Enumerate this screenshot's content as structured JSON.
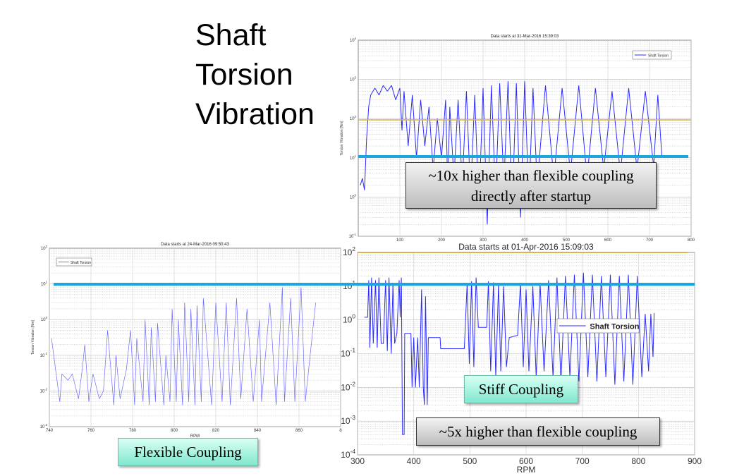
{
  "slide": {
    "title_lines": [
      "Shaft",
      "Torsion",
      "Vibration"
    ]
  },
  "annotations": {
    "top_note_line1": "~10x higher than flexible coupling",
    "top_note_line2": "directly after startup",
    "stiff_label": "Stiff Coupling",
    "stiff_note": "~5x higher than flexible coupling",
    "flexible_label": "Flexible Coupling",
    "reference_line_color": "#1aa7e0",
    "limit_line_color": "#d9b44a"
  },
  "chart_data": [
    {
      "id": "top",
      "type": "line",
      "title": "Data starts at 31-Mar-2016 15:39:03",
      "xlabel": "",
      "ylabel": "Torsion Vibration [Nm]",
      "yscale": "log",
      "xlim": [
        0,
        800
      ],
      "ylim": [
        0.1,
        10000
      ],
      "xticks": [
        "100",
        "200",
        "300",
        "400",
        "500",
        "600",
        "700",
        "800"
      ],
      "yticks": [
        "10^4",
        "10^3",
        "10^2",
        "10^1",
        "10^0",
        "10^-1"
      ],
      "grid": true,
      "legend": "top-right",
      "series": [
        {
          "name": "Shaft Torsion",
          "color": "#2b2bff",
          "points": [
            [
              5,
              2
            ],
            [
              10,
              3
            ],
            [
              15,
              1.5
            ],
            [
              20,
              30
            ],
            [
              25,
              200
            ],
            [
              30,
              400
            ],
            [
              40,
              600
            ],
            [
              50,
              400
            ],
            [
              60,
              700
            ],
            [
              70,
              500
            ],
            [
              80,
              700
            ],
            [
              90,
              300
            ],
            [
              100,
              600
            ],
            [
              105,
              50
            ],
            [
              110,
              500
            ],
            [
              120,
              20
            ],
            [
              130,
              400
            ],
            [
              140,
              10
            ],
            [
              150,
              300
            ],
            [
              160,
              20
            ],
            [
              170,
              200
            ],
            [
              180,
              5
            ],
            [
              190,
              100
            ],
            [
              200,
              10
            ],
            [
              210,
              300
            ],
            [
              215,
              2
            ],
            [
              220,
              200
            ],
            [
              230,
              3
            ],
            [
              240,
              300
            ],
            [
              250,
              2
            ],
            [
              260,
              500
            ],
            [
              270,
              1
            ],
            [
              280,
              400
            ],
            [
              290,
              0.5
            ],
            [
              300,
              600
            ],
            [
              310,
              0.2
            ],
            [
              320,
              700
            ],
            [
              330,
              1
            ],
            [
              340,
              800
            ],
            [
              350,
              2
            ],
            [
              360,
              900
            ],
            [
              370,
              0.5
            ],
            [
              380,
              800
            ],
            [
              390,
              0.3
            ],
            [
              400,
              900
            ],
            [
              410,
              0.8
            ],
            [
              420,
              600
            ],
            [
              430,
              2
            ],
            [
              450,
              700
            ],
            [
              470,
              3
            ],
            [
              490,
              600
            ],
            [
              510,
              4
            ],
            [
              530,
              700
            ],
            [
              550,
              3
            ],
            [
              570,
              600
            ],
            [
              590,
              5
            ],
            [
              610,
              500
            ],
            [
              630,
              4
            ],
            [
              650,
              600
            ],
            [
              670,
              5
            ],
            [
              690,
              500
            ],
            [
              710,
              6
            ],
            [
              720,
              400
            ],
            [
              730,
              10
            ]
          ]
        }
      ]
    },
    {
      "id": "flexible",
      "type": "line",
      "title": "Data starts at 24-Mar-2016 09:50:43",
      "xlabel": "RPM",
      "ylabel": "Torsion Vibration [Nm]",
      "yscale": "log",
      "xlim": [
        740,
        880
      ],
      "ylim": [
        0.001,
        100
      ],
      "xticks": [
        "740",
        "760",
        "780",
        "800",
        "820",
        "840",
        "860",
        "8"
      ],
      "yticks": [
        "10^2",
        "10^1",
        "10^0",
        "10^-1",
        "10^-2",
        "10^-3"
      ],
      "grid": true,
      "legend": "top-left",
      "series": [
        {
          "name": "Shaft Torsion",
          "color": "#6b6bff",
          "points": [
            [
              741,
              0.3
            ],
            [
              745,
              0.005
            ],
            [
              746,
              0.03
            ],
            [
              749,
              0.02
            ],
            [
              751,
              0.03
            ],
            [
              754,
              0.006
            ],
            [
              756,
              0.05
            ],
            [
              757,
              0.2
            ],
            [
              759,
              0.005
            ],
            [
              761,
              0.03
            ],
            [
              764,
              0.006
            ],
            [
              766,
              0.01
            ],
            [
              768,
              0.5
            ],
            [
              771,
              0.004
            ],
            [
              772,
              0.1
            ],
            [
              774,
              0.006
            ],
            [
              777,
              0.04
            ],
            [
              779,
              0.5
            ],
            [
              781,
              0.004
            ],
            [
              782,
              0.3
            ],
            [
              785,
              0.005
            ],
            [
              786,
              1
            ],
            [
              788,
              0.004
            ],
            [
              789,
              0.6
            ],
            [
              791,
              0.005
            ],
            [
              792,
              0.8
            ],
            [
              795,
              0.004
            ],
            [
              796,
              0.1
            ],
            [
              798,
              0.005
            ],
            [
              799,
              2
            ],
            [
              801,
              0.005
            ],
            [
              802,
              1
            ],
            [
              804,
              0.004
            ],
            [
              805,
              3
            ],
            [
              807,
              0.005
            ],
            [
              808,
              2
            ],
            [
              810,
              0.004
            ],
            [
              811,
              2.5
            ],
            [
              813,
              0.005
            ],
            [
              814,
              4
            ],
            [
              818,
              0.004
            ],
            [
              820,
              3
            ],
            [
              823,
              0.005
            ],
            [
              825,
              3
            ],
            [
              827,
              0.004
            ],
            [
              830,
              4
            ],
            [
              832,
              0.006
            ],
            [
              835,
              2
            ],
            [
              838,
              0.005
            ],
            [
              841,
              1
            ],
            [
              842,
              0.005
            ],
            [
              846,
              3
            ],
            [
              849,
              0.004
            ],
            [
              852,
              8
            ],
            [
              853,
              0.005
            ],
            [
              856,
              4
            ],
            [
              858,
              0.005
            ],
            [
              861,
              8
            ],
            [
              863,
              0.005
            ],
            [
              868,
              3
            ]
          ]
        }
      ]
    },
    {
      "id": "stiff",
      "type": "line",
      "title": "Data starts at 01-Apr-2016 15:09:03",
      "xlabel": "RPM",
      "ylabel": "",
      "yscale": "log",
      "xlim": [
        300,
        900
      ],
      "ylim": [
        0.0001,
        100
      ],
      "xticks": [
        "300",
        "400",
        "500",
        "600",
        "700",
        "800",
        "900"
      ],
      "yticks": [
        "10^2",
        "10^1",
        "10^0",
        "10^-1",
        "10^-2",
        "10^-3",
        "10^-4"
      ],
      "grid": true,
      "legend": "right",
      "series": [
        {
          "name": "Shaft Torsion",
          "color": "#2b2bff",
          "points": [
            [
              312,
              1.2
            ],
            [
              318,
              1.2
            ],
            [
              320,
              15
            ],
            [
              322,
              0.15
            ],
            [
              325,
              18
            ],
            [
              328,
              0.2
            ],
            [
              332,
              15
            ],
            [
              335,
              0.15
            ],
            [
              338,
              18
            ],
            [
              342,
              0.2
            ],
            [
              346,
              0.2
            ],
            [
              350,
              15
            ],
            [
              353,
              0.12
            ],
            [
              356,
              18
            ],
            [
              360,
              0.1
            ],
            [
              363,
              12
            ],
            [
              366,
              0.2
            ],
            [
              370,
              0.4
            ],
            [
              374,
              15
            ],
            [
              376,
              1.2
            ],
            [
              378,
              18
            ],
            [
              380,
              0.0004
            ],
            [
              383,
              0.0004
            ],
            [
              384,
              0.4
            ],
            [
              395,
              0.4
            ],
            [
              397,
              0.01
            ],
            [
              400,
              0.3
            ],
            [
              403,
              0.01
            ],
            [
              407,
              0.3
            ],
            [
              410,
              0.01
            ],
            [
              414,
              8
            ],
            [
              417,
              0.01
            ],
            [
              419,
              0.003
            ],
            [
              421,
              5
            ],
            [
              424,
              0.003
            ],
            [
              426,
              0.3
            ],
            [
              447,
              0.3
            ],
            [
              448,
              0.14
            ],
            [
              452,
              0.14
            ],
            [
              490,
              0.14
            ],
            [
              495,
              12
            ],
            [
              499,
              0.05
            ],
            [
              503,
              14
            ],
            [
              507,
              0.04
            ],
            [
              511,
              18
            ],
            [
              515,
              0.6
            ],
            [
              530,
              0.6
            ],
            [
              533,
              14
            ],
            [
              537,
              0.03
            ],
            [
              542,
              13
            ],
            [
              546,
              0.02
            ],
            [
              551,
              12
            ],
            [
              555,
              0.03
            ],
            [
              560,
              10
            ],
            [
              565,
              0.04
            ],
            [
              570,
              0.3
            ],
            [
              585,
              0.35
            ],
            [
              590,
              12
            ],
            [
              595,
              0.04
            ],
            [
              600,
              8
            ],
            [
              605,
              0.03
            ],
            [
              612,
              10
            ],
            [
              618,
              0.02
            ],
            [
              625,
              12
            ],
            [
              632,
              0.03
            ],
            [
              640,
              15
            ],
            [
              648,
              0.02
            ],
            [
              655,
              18
            ],
            [
              662,
              0.015
            ],
            [
              670,
              20
            ],
            [
              678,
              0.02
            ],
            [
              686,
              22
            ],
            [
              694,
              0.015
            ],
            [
              702,
              25
            ],
            [
              710,
              0.02
            ],
            [
              718,
              22
            ],
            [
              726,
              0.015
            ],
            [
              734,
              20
            ],
            [
              742,
              0.02
            ],
            [
              750,
              22
            ],
            [
              758,
              0.012
            ],
            [
              766,
              20
            ],
            [
              774,
              0.015
            ],
            [
              782,
              22
            ],
            [
              790,
              0.012
            ],
            [
              798,
              20
            ],
            [
              806,
              0.02
            ],
            [
              812,
              1.5
            ],
            [
              818,
              0.03
            ],
            [
              822,
              1.5
            ],
            [
              826,
              0.08
            ],
            [
              828,
              1.6
            ]
          ]
        }
      ]
    }
  ]
}
